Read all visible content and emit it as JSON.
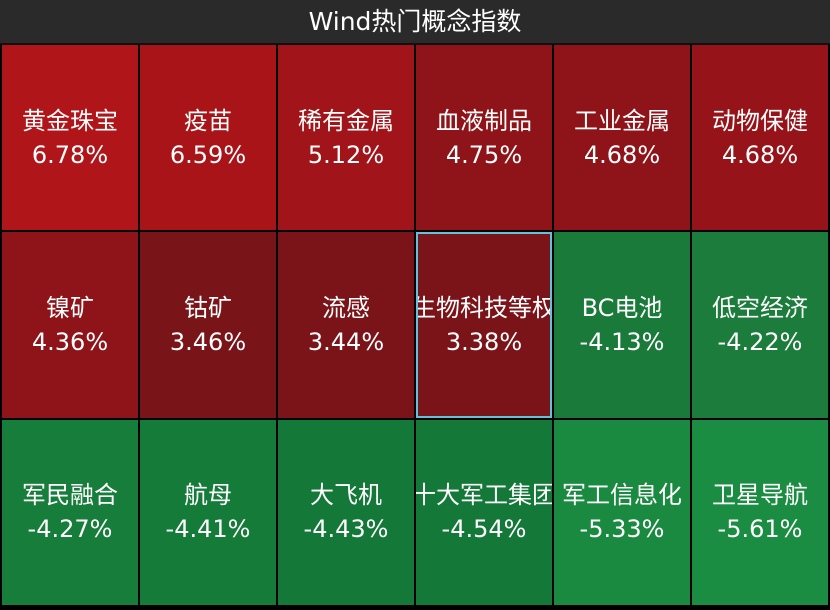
{
  "header": {
    "title": "Wind热门概念指数"
  },
  "tiles": [
    {
      "name": "黄金珠宝",
      "change": "6.78%",
      "color": "#b01519"
    },
    {
      "name": "疫苗",
      "change": "6.59%",
      "color": "#a91418"
    },
    {
      "name": "稀有金属",
      "change": "5.12%",
      "color": "#a11419"
    },
    {
      "name": "血液制品",
      "change": "4.75%",
      "color": "#8f1419"
    },
    {
      "name": "工业金属",
      "change": "4.68%",
      "color": "#8f1419"
    },
    {
      "name": "动物保健",
      "change": "4.68%",
      "color": "#961419"
    },
    {
      "name": "镍矿",
      "change": "4.36%",
      "color": "#8e1419"
    },
    {
      "name": "钴矿",
      "change": "3.46%",
      "color": "#791418"
    },
    {
      "name": "流感",
      "change": "3.44%",
      "color": "#7b1419"
    },
    {
      "name": "生物科技等权",
      "change": "3.38%",
      "color": "#7a1419",
      "selected": true
    },
    {
      "name": "BC电池",
      "change": "-4.13%",
      "color": "#1a7a3a"
    },
    {
      "name": "低空经济",
      "change": "-4.22%",
      "color": "#1b7c3b"
    },
    {
      "name": "军民融合",
      "change": "-4.27%",
      "color": "#177d3a"
    },
    {
      "name": "航母",
      "change": "-4.41%",
      "color": "#157b39"
    },
    {
      "name": "大飞机",
      "change": "-4.43%",
      "color": "#137838"
    },
    {
      "name": "十大军工集团",
      "change": "-4.54%",
      "color": "#137838"
    },
    {
      "name": "军工信息化",
      "change": "-5.33%",
      "color": "#1b8a41"
    },
    {
      "name": "卫星导航",
      "change": "-5.61%",
      "color": "#1b8d43"
    }
  ]
}
